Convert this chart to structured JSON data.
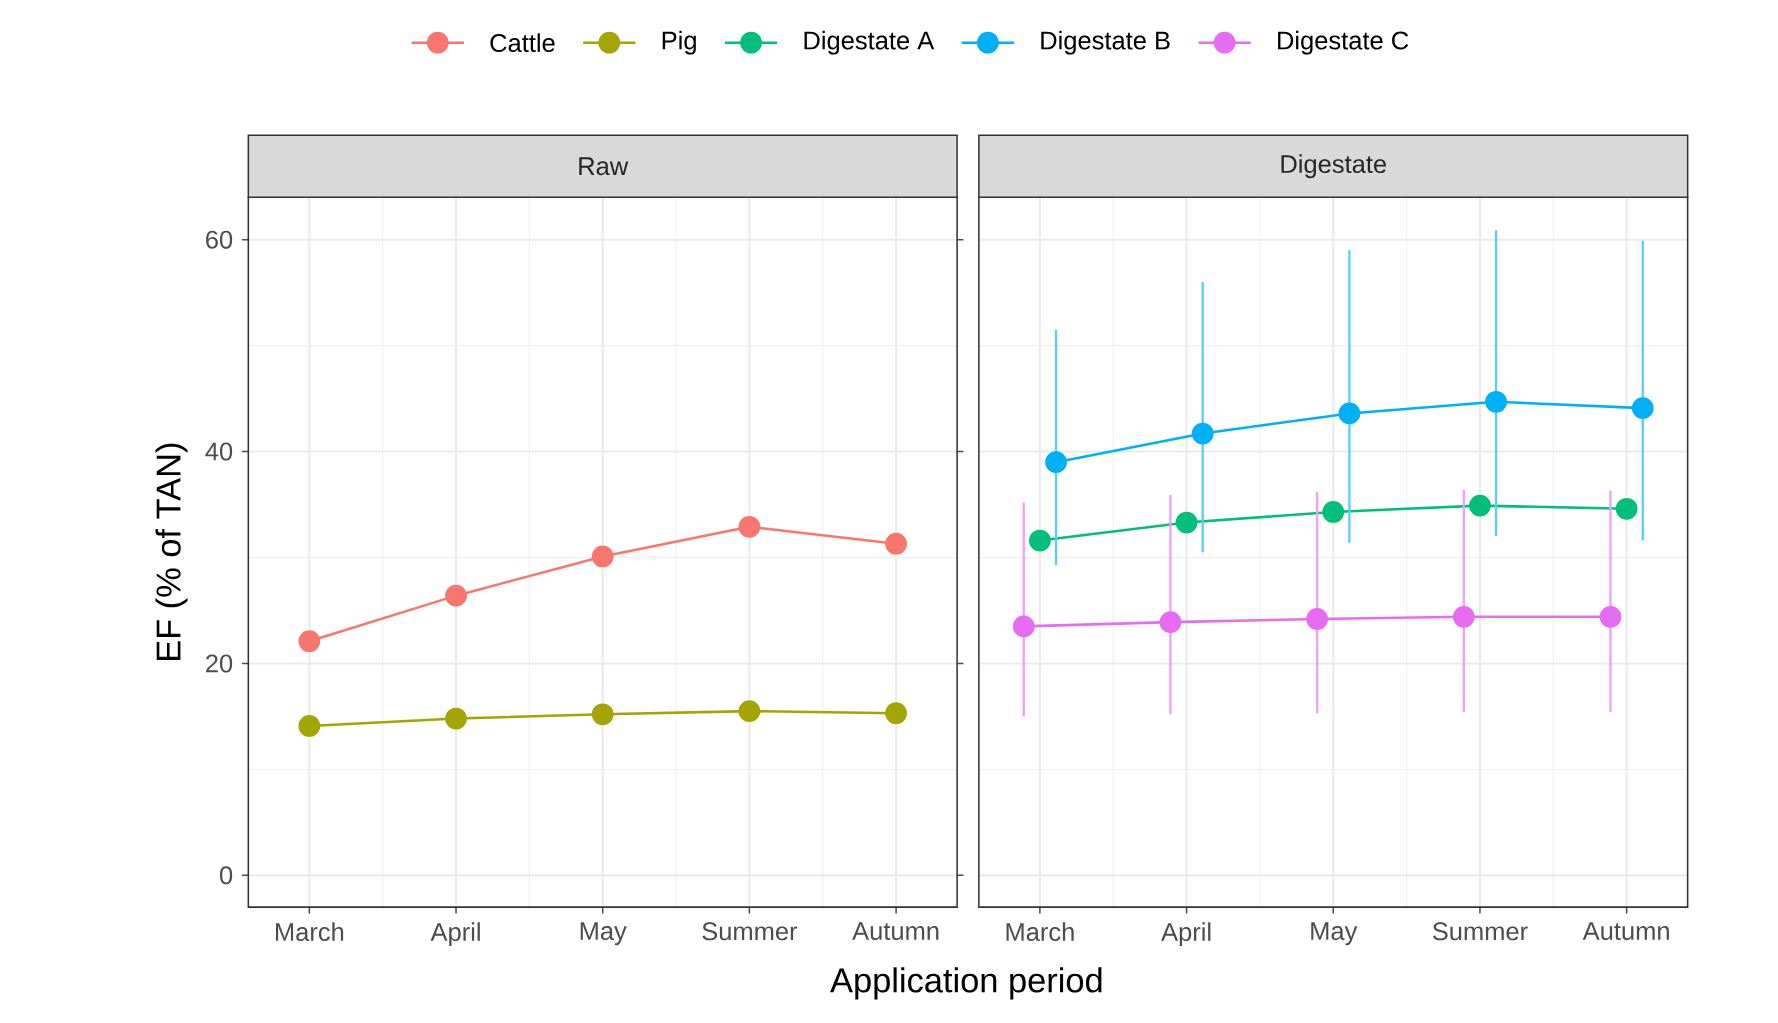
{
  "chart_data": [
    {
      "type": "line",
      "title": "Raw",
      "xlabel": "Application period",
      "ylabel": "EF (% of TAN)",
      "categories": [
        "March",
        "April",
        "May",
        "Summer",
        "Autumn"
      ],
      "series": [
        {
          "name": "Cattle",
          "color": "#f8766d",
          "values": [
            22.1,
            26.4,
            30.1,
            32.9,
            31.3
          ]
        },
        {
          "name": "Pig",
          "color": "#a3a500",
          "values": [
            14.1,
            14.8,
            15.2,
            15.5,
            15.3
          ]
        }
      ],
      "ylim": [
        -3,
        64
      ],
      "yticks": [
        0,
        20,
        40,
        60
      ],
      "grid": true,
      "legend": "top",
      "marker": "circle"
    },
    {
      "type": "line",
      "title": "Digestate",
      "categories": [
        "March",
        "April",
        "May",
        "Summer",
        "Autumn"
      ],
      "series": [
        {
          "name": "Digestate A",
          "color": "#00bf7d",
          "values": [
            31.6,
            33.3,
            34.3,
            34.9,
            34.6
          ]
        },
        {
          "name": "Digestate B",
          "color": "#00b0f6",
          "values": [
            39.0,
            41.7,
            43.6,
            44.7,
            44.1
          ],
          "errors": [
            [
              29.3,
              51.5
            ],
            [
              30.5,
              56.0
            ],
            [
              31.4,
              59.0
            ],
            [
              32.0,
              60.9
            ],
            [
              31.6,
              59.9
            ]
          ]
        },
        {
          "name": "Digestate C",
          "color": "#e76bf3",
          "values": [
            23.5,
            23.9,
            24.2,
            24.4,
            24.4
          ],
          "errors": [
            [
              15.0,
              35.2
            ],
            [
              15.2,
              35.9
            ],
            [
              15.3,
              36.2
            ],
            [
              15.4,
              36.4
            ],
            [
              15.4,
              36.3
            ]
          ]
        }
      ],
      "ylim": [
        -3,
        64
      ],
      "yticks": [
        0,
        20,
        40,
        60
      ],
      "grid": true,
      "legend": "top",
      "marker": "circle",
      "tick_labels": "x"
    }
  ]
}
